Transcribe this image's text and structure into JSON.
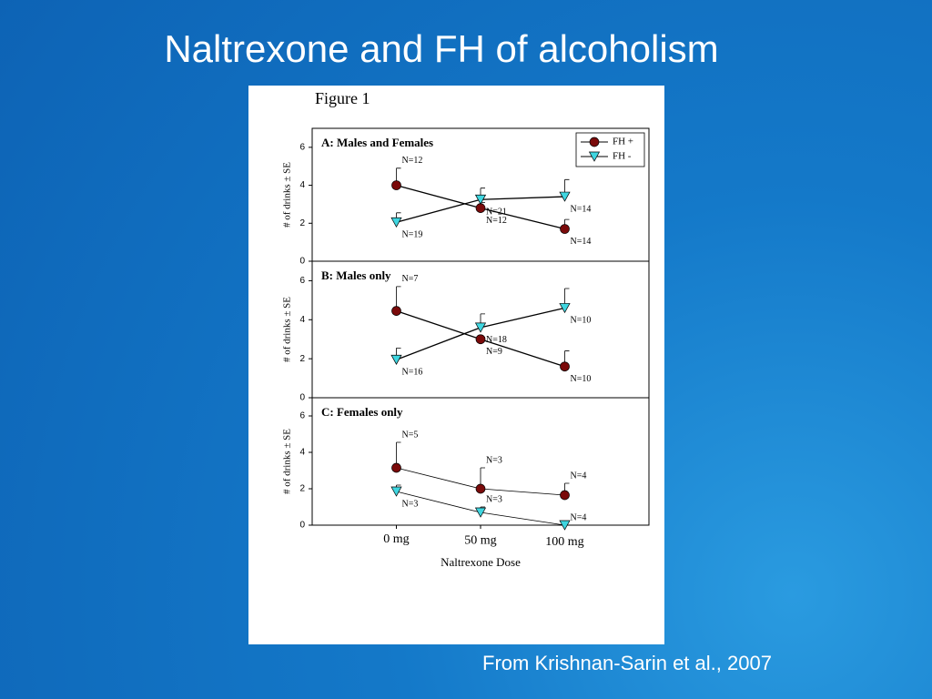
{
  "title": "Naltrexone and FH of alcoholism",
  "figure_label": "Figure 1",
  "source": "From Krishnan-Sarin et al., 2007",
  "chart_data": [
    {
      "type": "line",
      "title": "A: Males and Females",
      "ylabel": "# of drinks ± SE",
      "ylim": [
        0,
        7
      ],
      "yticks": [
        0,
        2,
        4,
        6
      ],
      "legend": "upper right",
      "series": [
        {
          "name": "FH +",
          "color": "#7a0a0a",
          "marker": "circle",
          "values": [
            4.0,
            2.8,
            1.7
          ],
          "errors": [
            0.9,
            0.3,
            0.5
          ],
          "point_labels": [
            "N=12",
            "N=12",
            "N=14"
          ]
        },
        {
          "name": "FH -",
          "color": "#3fd6e0",
          "marker": "triangle",
          "values": [
            2.05,
            3.25,
            3.4
          ],
          "errors": [
            0.5,
            0.6,
            0.9
          ],
          "point_labels": [
            "N=19",
            "N=21",
            "N=14"
          ]
        }
      ]
    },
    {
      "type": "line",
      "title": "B: Males only",
      "ylabel": "# of drinks ± SE",
      "ylim": [
        0,
        7
      ],
      "yticks": [
        0,
        2,
        4,
        6
      ],
      "series": [
        {
          "color": "#7a0a0a",
          "marker": "circle",
          "values": [
            4.45,
            3.0,
            1.6
          ],
          "errors": [
            1.25,
            0.1,
            0.8
          ],
          "point_labels": [
            "N=7",
            "N=9",
            "N=10"
          ]
        },
        {
          "color": "#3fd6e0",
          "marker": "triangle",
          "values": [
            1.95,
            3.6,
            4.6
          ],
          "errors": [
            0.6,
            0.7,
            1.0
          ],
          "point_labels": [
            "N=16",
            "N=18",
            "N=10"
          ]
        }
      ]
    },
    {
      "type": "line",
      "title": "C: Females only",
      "ylabel": "# of drinks ± SE",
      "xlabel": "Naltrexone Dose",
      "categories": [
        "0 mg",
        "50 mg",
        "100 mg"
      ],
      "ylim": [
        0,
        7
      ],
      "yticks": [
        0,
        2,
        4,
        6
      ],
      "series": [
        {
          "color": "#7a0a0a",
          "marker": "circle",
          "values": [
            3.15,
            2.0,
            1.65
          ],
          "errors": [
            1.4,
            1.15,
            0.65
          ],
          "point_labels": [
            "N=5",
            "N=3",
            "N=4"
          ]
        },
        {
          "color": "#3fd6e0",
          "marker": "triangle",
          "values": [
            1.85,
            0.7,
            0.0
          ],
          "errors": [
            0.35,
            0.3,
            0.0
          ],
          "point_labels": [
            "N=3",
            "N=3",
            "N=4"
          ]
        }
      ]
    }
  ]
}
